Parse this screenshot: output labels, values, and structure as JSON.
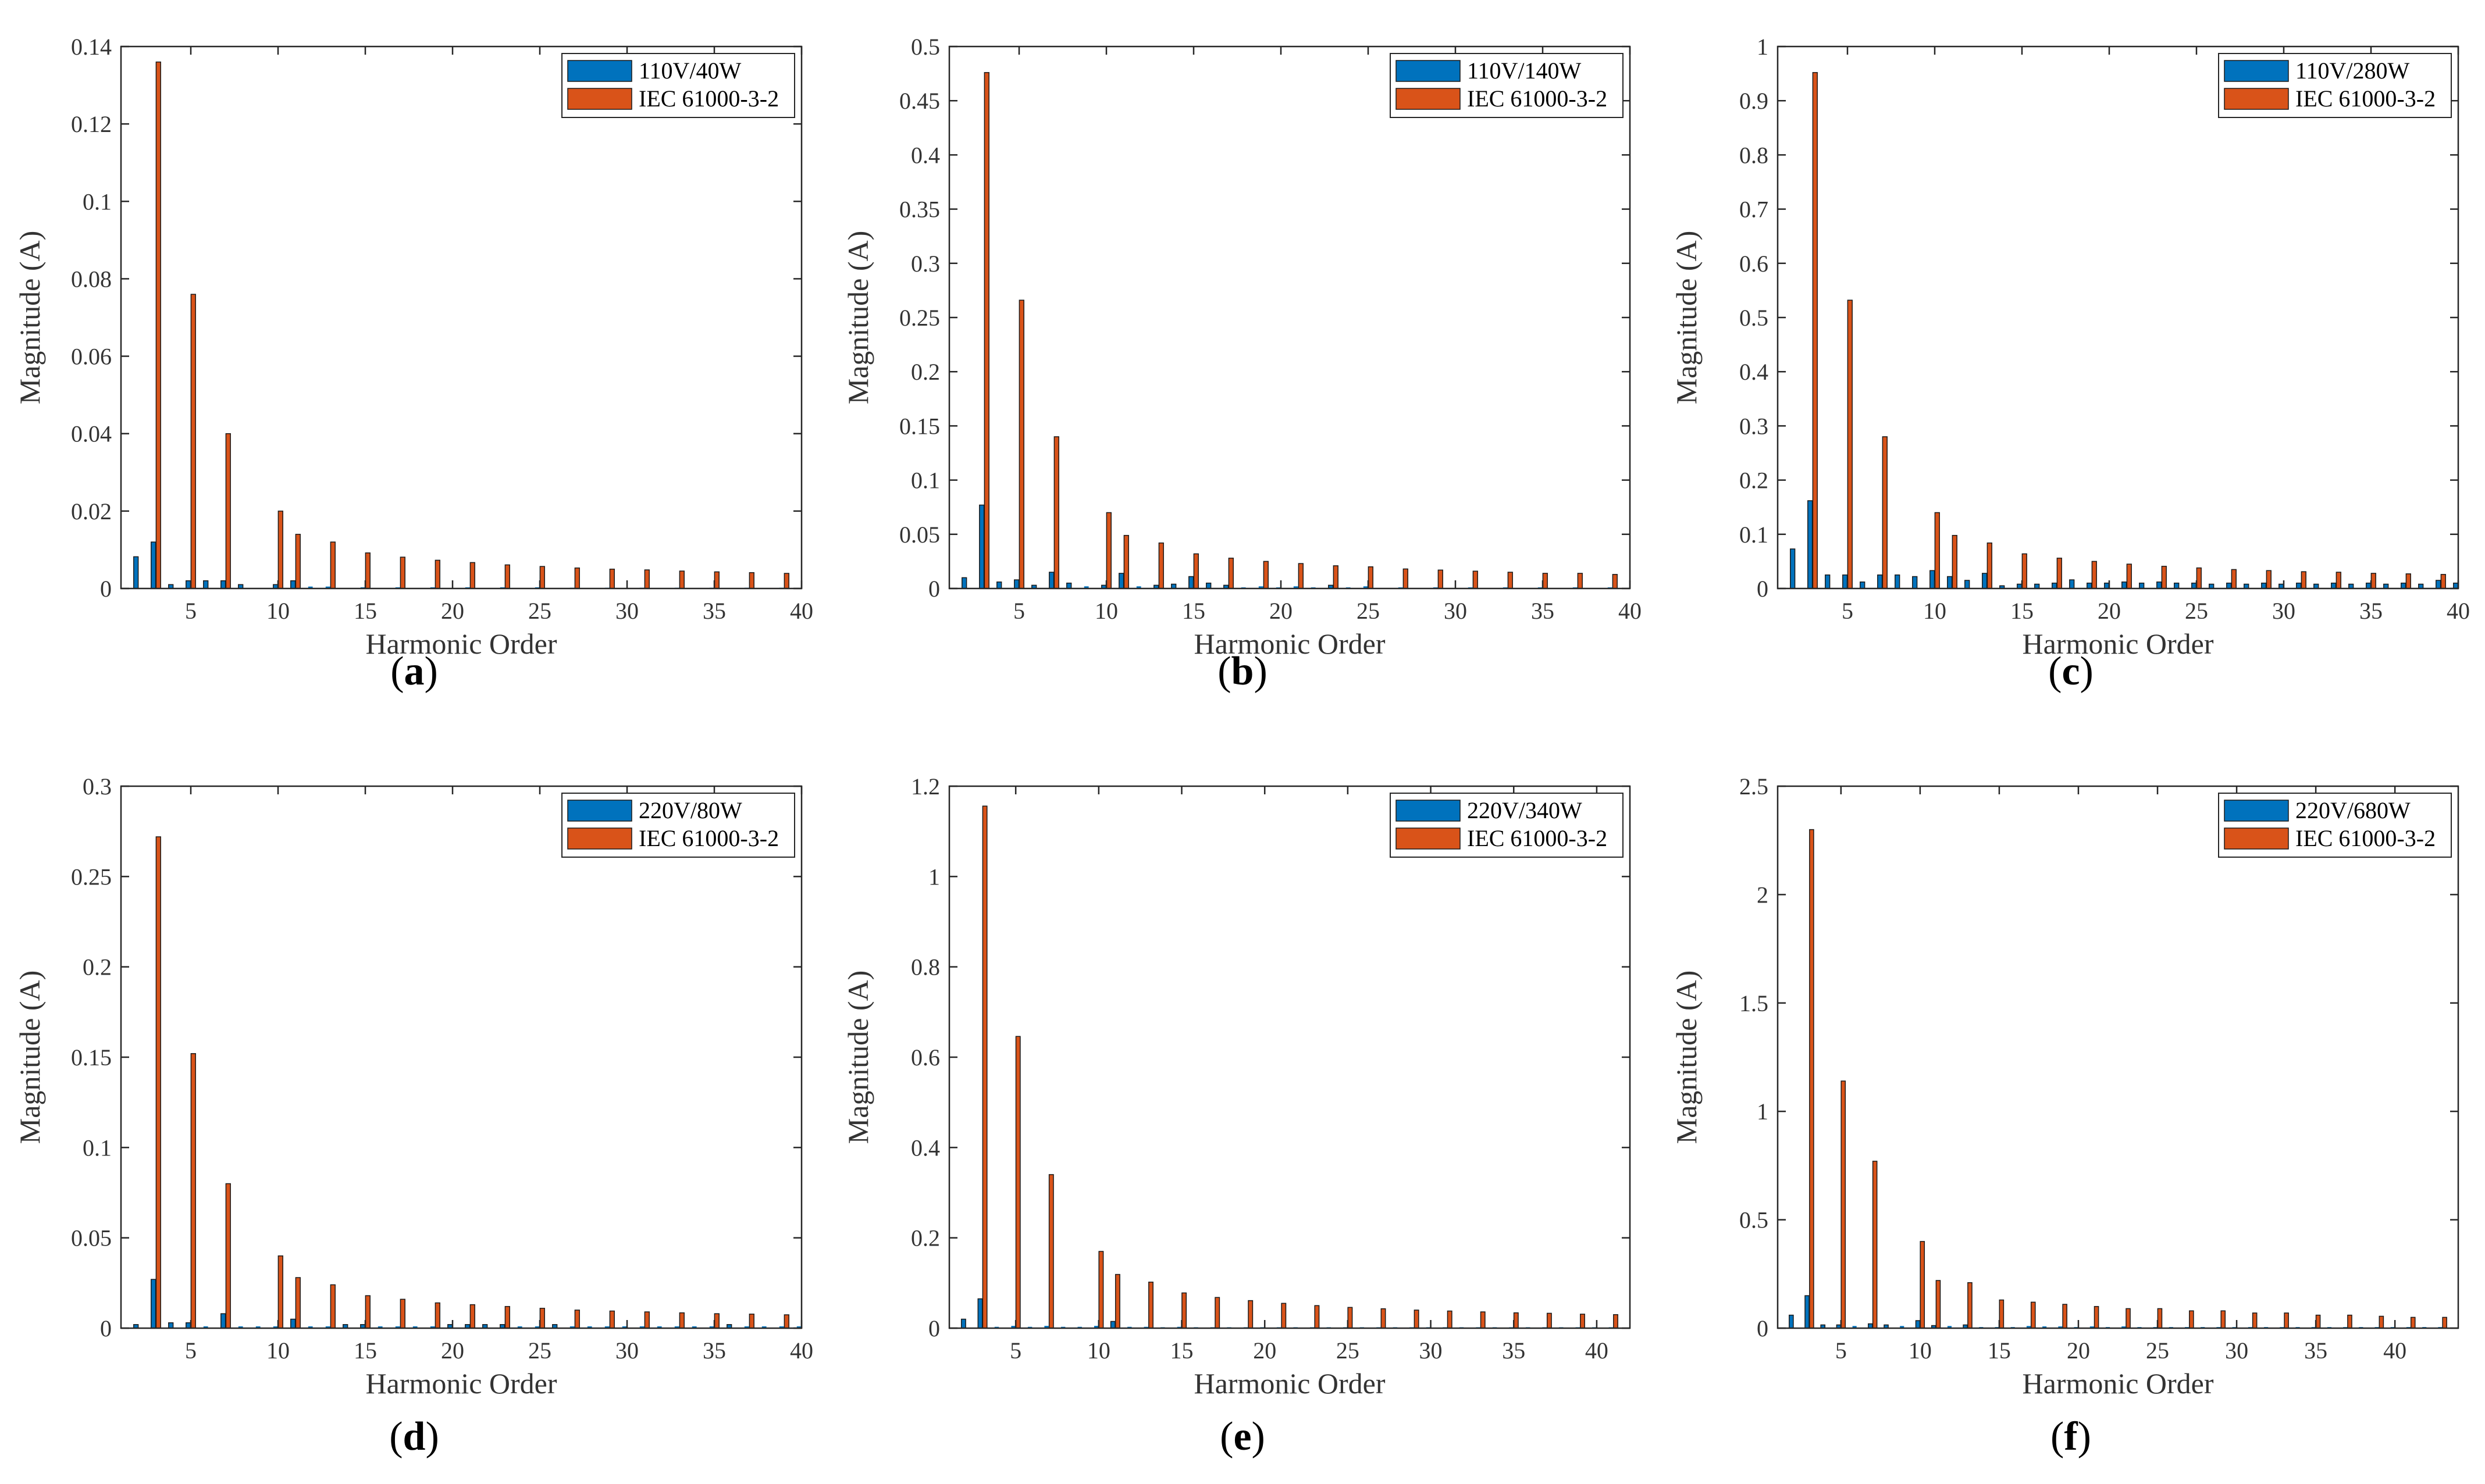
{
  "colors": {
    "measured": "#0072BD",
    "standard": "#D95319",
    "axis": "#262626"
  },
  "chart_data": [
    {
      "type": "bar",
      "label": "a",
      "xlabel": "Harmonic Order",
      "ylabel": "Magnitude (A)",
      "xlim": [
        1,
        40
      ],
      "ylim": [
        0,
        0.14
      ],
      "xticks": [
        5,
        10,
        15,
        20,
        25,
        30,
        35,
        40
      ],
      "xtick_labels": [
        "5",
        "10",
        "15",
        "20",
        "25",
        "30",
        "35",
        "40"
      ],
      "yticks": [
        0,
        0.02,
        0.04,
        0.06,
        0.08,
        0.1,
        0.12,
        0.14
      ],
      "ytick_labels": [
        "0",
        "0.02",
        "0.04",
        "0.06",
        "0.08",
        "0.1",
        "0.12",
        "0.14"
      ],
      "legend_position": "top-right",
      "x": [
        2,
        3,
        4,
        5,
        6,
        7,
        8,
        9,
        10,
        11,
        12,
        13,
        14,
        15,
        16,
        17,
        18,
        19,
        20,
        21,
        22,
        23,
        24,
        25,
        26,
        27,
        28,
        29,
        30,
        31,
        32,
        33,
        34,
        35,
        36,
        37,
        38,
        39,
        40
      ],
      "series": [
        {
          "name": "110V/40W",
          "values": [
            0.0082,
            0.012,
            0.001,
            0.002,
            0.002,
            0.002,
            0.001,
            0,
            0.001,
            0.002,
            0.0005,
            0.0005,
            0,
            0.0003,
            0,
            0.0003,
            0,
            0.0003,
            0,
            0.0003,
            0,
            0.0003,
            0,
            0.0003,
            0,
            0.0002,
            0,
            0.0002,
            0,
            0.0002,
            0,
            0.0002,
            0,
            0.0002,
            0,
            0.0002,
            0,
            0.0002,
            0
          ]
        },
        {
          "name": "IEC 61000-3-2",
          "values": [
            0,
            0.136,
            0,
            0.076,
            0,
            0.04,
            0,
            0,
            0.02,
            0.014,
            0,
            0.012,
            0,
            0.0092,
            0,
            0.0081,
            0,
            0.0073,
            0,
            0.0067,
            0,
            0.0061,
            0,
            0.0057,
            0,
            0.0053,
            0,
            0.005,
            0,
            0.0048,
            0,
            0.0045,
            0,
            0.0043,
            0,
            0.0041,
            0,
            0.0039,
            0
          ]
        }
      ]
    },
    {
      "type": "bar",
      "label": "b",
      "xlabel": "Harmonic Order",
      "ylabel": "Magnitude (A)",
      "xlim": [
        1,
        40
      ],
      "ylim": [
        0,
        0.5
      ],
      "xticks": [
        5,
        10,
        15,
        20,
        25,
        30,
        35,
        40
      ],
      "xtick_labels": [
        "5",
        "10",
        "15",
        "20",
        "25",
        "30",
        "35",
        "40"
      ],
      "yticks": [
        0,
        0.05,
        0.1,
        0.15,
        0.2,
        0.25,
        0.3,
        0.35,
        0.4,
        0.45,
        0.5
      ],
      "ytick_labels": [
        "0",
        "0.05",
        "0.1",
        "0.15",
        "0.2",
        "0.25",
        "0.3",
        "0.35",
        "0.4",
        "0.45",
        "0.5"
      ],
      "legend_position": "top-right",
      "x": [
        2,
        3,
        4,
        5,
        6,
        7,
        8,
        9,
        10,
        11,
        12,
        13,
        14,
        15,
        16,
        17,
        18,
        19,
        20,
        21,
        22,
        23,
        24,
        25,
        26,
        27,
        28,
        29,
        30,
        31,
        32,
        33,
        34,
        35,
        36,
        37,
        38,
        39,
        40
      ],
      "series": [
        {
          "name": "110V/140W",
          "values": [
            0.01,
            0.077,
            0.006,
            0.008,
            0.003,
            0.015,
            0.005,
            0.002,
            0.003,
            0.014,
            0.002,
            0.003,
            0.004,
            0.011,
            0.005,
            0.003,
            0.001,
            0.002,
            0.001,
            0.002,
            0.001,
            0.003,
            0.001,
            0.002,
            0,
            0.001,
            0,
            0.001,
            0,
            0.001,
            0,
            0.001,
            0,
            0.001,
            0,
            0.001,
            0,
            0.001,
            0
          ]
        },
        {
          "name": "IEC 61000-3-2",
          "values": [
            0,
            0.476,
            0,
            0.266,
            0,
            0.14,
            0,
            0,
            0.07,
            0.049,
            0,
            0.042,
            0,
            0.032,
            0,
            0.028,
            0,
            0.025,
            0,
            0.023,
            0,
            0.021,
            0,
            0.02,
            0,
            0.018,
            0,
            0.017,
            0,
            0.016,
            0,
            0.015,
            0,
            0.014,
            0,
            0.014,
            0,
            0.013,
            0
          ]
        }
      ]
    },
    {
      "type": "bar",
      "label": "c",
      "xlabel": "Harmonic Order",
      "ylabel": "Magnitude (A)",
      "xlim": [
        1,
        40
      ],
      "ylim": [
        0,
        1
      ],
      "xticks": [
        5,
        10,
        15,
        20,
        25,
        30,
        35,
        40
      ],
      "xtick_labels": [
        "5",
        "10",
        "15",
        "20",
        "25",
        "30",
        "35",
        "40"
      ],
      "yticks": [
        0,
        0.1,
        0.2,
        0.3,
        0.4,
        0.5,
        0.6,
        0.7,
        0.8,
        0.9,
        1
      ],
      "ytick_labels": [
        "0",
        "0.1",
        "0.2",
        "0.3",
        "0.4",
        "0.5",
        "0.6",
        "0.7",
        "0.8",
        "0.9",
        "1"
      ],
      "legend_position": "top-right",
      "x": [
        2,
        3,
        4,
        5,
        6,
        7,
        8,
        9,
        10,
        11,
        12,
        13,
        14,
        15,
        16,
        17,
        18,
        19,
        20,
        21,
        22,
        23,
        24,
        25,
        26,
        27,
        28,
        29,
        30,
        31,
        32,
        33,
        34,
        35,
        36,
        37,
        38,
        39,
        40
      ],
      "series": [
        {
          "name": "110V/280W",
          "values": [
            0.073,
            0.162,
            0.025,
            0.025,
            0.012,
            0.025,
            0.025,
            0.022,
            0.033,
            0.022,
            0.015,
            0.028,
            0.005,
            0.008,
            0.008,
            0.01,
            0.016,
            0.01,
            0.01,
            0.012,
            0.01,
            0.012,
            0.01,
            0.01,
            0.008,
            0.01,
            0.008,
            0.01,
            0.008,
            0.01,
            0.008,
            0.01,
            0.008,
            0.01,
            0.008,
            0.01,
            0.008,
            0.015,
            0.01
          ]
        },
        {
          "name": "IEC 61000-3-2",
          "values": [
            0,
            0.952,
            0,
            0.532,
            0,
            0.28,
            0,
            0,
            0.14,
            0.098,
            0,
            0.084,
            0,
            0.064,
            0,
            0.056,
            0,
            0.05,
            0,
            0.045,
            0,
            0.041,
            0,
            0.038,
            0,
            0.035,
            0,
            0.033,
            0,
            0.031,
            0,
            0.03,
            0,
            0.028,
            0,
            0.027,
            0,
            0.026,
            0
          ]
        }
      ]
    },
    {
      "type": "bar",
      "label": "d",
      "xlabel": "Harmonic Order",
      "ylabel": "Magnitude (A)",
      "xlim": [
        1,
        40
      ],
      "ylim": [
        0,
        0.3
      ],
      "xticks": [
        5,
        10,
        15,
        20,
        25,
        30,
        35,
        40
      ],
      "xtick_labels": [
        "5",
        "10",
        "15",
        "20",
        "25",
        "30",
        "35",
        "40"
      ],
      "yticks": [
        0,
        0.05,
        0.1,
        0.15,
        0.2,
        0.25,
        0.3
      ],
      "ytick_labels": [
        "0",
        "0.05",
        "0.1",
        "0.15",
        "0.2",
        "0.25",
        "0.3"
      ],
      "legend_position": "top-right",
      "x": [
        2,
        3,
        4,
        5,
        6,
        7,
        8,
        9,
        10,
        11,
        12,
        13,
        14,
        15,
        16,
        17,
        18,
        19,
        20,
        21,
        22,
        23,
        24,
        25,
        26,
        27,
        28,
        29,
        30,
        31,
        32,
        33,
        34,
        35,
        36,
        37,
        38,
        39,
        40
      ],
      "series": [
        {
          "name": "220V/80W",
          "values": [
            0.002,
            0.027,
            0.003,
            0.003,
            0.001,
            0.008,
            0.001,
            0.001,
            0.001,
            0.005,
            0.001,
            0.001,
            0.002,
            0.002,
            0.001,
            0.001,
            0.001,
            0.001,
            0.002,
            0.002,
            0.002,
            0.002,
            0.001,
            0.001,
            0.002,
            0.001,
            0.001,
            0.001,
            0.001,
            0.001,
            0.001,
            0.001,
            0.001,
            0.001,
            0.002,
            0.001,
            0.001,
            0.001,
            0.001
          ]
        },
        {
          "name": "IEC 61000-3-2",
          "values": [
            0,
            0.272,
            0,
            0.152,
            0,
            0.08,
            0,
            0,
            0.04,
            0.028,
            0,
            0.024,
            0,
            0.018,
            0,
            0.016,
            0,
            0.014,
            0,
            0.013,
            0,
            0.012,
            0,
            0.011,
            0,
            0.01,
            0,
            0.0095,
            0,
            0.009,
            0,
            0.0085,
            0,
            0.008,
            0,
            0.0078,
            0,
            0.0074,
            0
          ]
        }
      ]
    },
    {
      "type": "bar",
      "label": "e",
      "xlabel": "Harmonic Order",
      "ylabel": "Magnitude (A)",
      "xlim": [
        1,
        42
      ],
      "ylim": [
        0,
        1.2
      ],
      "xticks": [
        5,
        10,
        15,
        20,
        25,
        30,
        35,
        40
      ],
      "xtick_labels": [
        "5",
        "10",
        "15",
        "20",
        "25",
        "30",
        "35",
        "40"
      ],
      "yticks": [
        0,
        0.2,
        0.4,
        0.6,
        0.8,
        1,
        1.2
      ],
      "ytick_labels": [
        "0",
        "0.2",
        "0.4",
        "0.6",
        "0.8",
        "1",
        "1.2"
      ],
      "legend_position": "top-right",
      "x": [
        2,
        3,
        4,
        5,
        6,
        7,
        8,
        9,
        10,
        11,
        12,
        13,
        14,
        15,
        16,
        17,
        18,
        19,
        20,
        21,
        22,
        23,
        24,
        25,
        26,
        27,
        28,
        29,
        30,
        31,
        32,
        33,
        34,
        35,
        36,
        37,
        38,
        39,
        40,
        41
      ],
      "series": [
        {
          "name": "220V/340W",
          "values": [
            0.02,
            0.065,
            0.003,
            0.005,
            0.003,
            0.005,
            0.003,
            0.003,
            0.005,
            0.015,
            0.003,
            0.003,
            0.002,
            0.003,
            0.002,
            0.002,
            0.002,
            0.002,
            0.002,
            0.002,
            0.002,
            0.002,
            0.002,
            0.002,
            0.002,
            0.002,
            0.002,
            0.002,
            0.002,
            0.002,
            0.002,
            0.002,
            0.002,
            0.002,
            0.002,
            0.002,
            0.002,
            0.002,
            0.002,
            0.002
          ]
        },
        {
          "name": "IEC 61000-3-2",
          "values": [
            0,
            1.156,
            0,
            0.646,
            0,
            0.34,
            0,
            0,
            0.17,
            0.119,
            0,
            0.102,
            0,
            0.078,
            0,
            0.068,
            0,
            0.061,
            0,
            0.055,
            0,
            0.05,
            0,
            0.046,
            0,
            0.043,
            0,
            0.04,
            0,
            0.038,
            0,
            0.036,
            0,
            0.034,
            0,
            0.033,
            0,
            0.031,
            0,
            0.03
          ]
        }
      ]
    },
    {
      "type": "bar",
      "label": "f",
      "xlabel": "Harmonic Order",
      "ylabel": "Magnitude (A)",
      "xlim": [
        1,
        44
      ],
      "ylim": [
        0,
        2.5
      ],
      "xticks": [
        5,
        10,
        15,
        20,
        25,
        30,
        35,
        40
      ],
      "xtick_labels": [
        "5",
        "10",
        "15",
        "20",
        "25",
        "30",
        "35",
        "40"
      ],
      "yticks": [
        0,
        0.5,
        1,
        1.5,
        2,
        2.5
      ],
      "ytick_labels": [
        "0",
        "0.5",
        "1",
        "1.5",
        "2",
        "2.5"
      ],
      "legend_position": "top-right",
      "x": [
        2,
        3,
        4,
        5,
        6,
        7,
        8,
        9,
        10,
        11,
        12,
        13,
        14,
        15,
        16,
        17,
        18,
        19,
        20,
        21,
        22,
        23,
        24,
        25,
        26,
        27,
        28,
        29,
        30,
        31,
        32,
        33,
        34,
        35,
        36,
        37,
        38,
        39,
        40,
        41,
        42,
        43
      ],
      "series": [
        {
          "name": "220V/680W",
          "values": [
            0.06,
            0.15,
            0.015,
            0.015,
            0.01,
            0.02,
            0.015,
            0.01,
            0.035,
            0.012,
            0.01,
            0.015,
            0.005,
            0.005,
            0.005,
            0.01,
            0.008,
            0.008,
            0.005,
            0.008,
            0.005,
            0.008,
            0.005,
            0.005,
            0.005,
            0.005,
            0.005,
            0.005,
            0.005,
            0.005,
            0.005,
            0.005,
            0.005,
            0.005,
            0.005,
            0.005,
            0.005,
            0.005,
            0.005,
            0.005,
            0.005,
            0.005
          ]
        },
        {
          "name": "IEC 61000-3-2",
          "values": [
            0,
            2.3,
            0,
            1.14,
            0,
            0.77,
            0,
            0,
            0.4,
            0.22,
            0,
            0.21,
            0,
            0.13,
            0,
            0.12,
            0,
            0.11,
            0,
            0.1,
            0,
            0.09,
            0,
            0.09,
            0,
            0.08,
            0,
            0.08,
            0,
            0.07,
            0,
            0.07,
            0,
            0.06,
            0,
            0.06,
            0,
            0.055,
            0,
            0.05,
            0,
            0.05
          ]
        }
      ]
    }
  ]
}
